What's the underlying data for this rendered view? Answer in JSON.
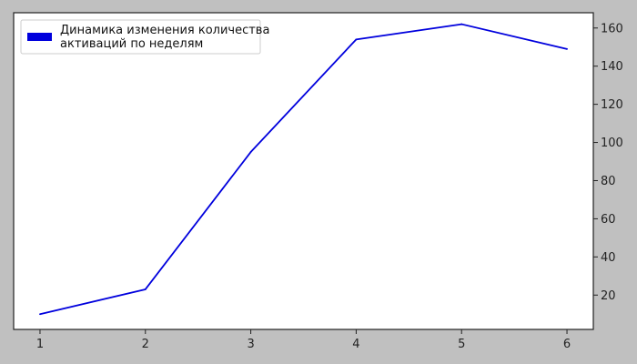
{
  "chart_data": {
    "type": "line",
    "title": "",
    "xlabel": "",
    "ylabel": "",
    "x": [
      1,
      2,
      3,
      4,
      5,
      6
    ],
    "series": [
      {
        "name": "Динамика изменения количества активаций по неделям",
        "name_lines": [
          "Динамика изменения количества",
          "активаций по неделям"
        ],
        "values": [
          10,
          23,
          95,
          154,
          162,
          149
        ],
        "color": "#0000dd"
      }
    ],
    "xticks": [
      "1",
      "2",
      "3",
      "4",
      "5",
      "6"
    ],
    "yticks": [
      20,
      40,
      60,
      80,
      100,
      120,
      140,
      160
    ],
    "ytick_labels": [
      "20",
      "40",
      "60",
      "80",
      "100",
      "120",
      "140",
      "160"
    ],
    "xlim": [
      0.75,
      6.25
    ],
    "ylim": [
      2,
      168
    ],
    "y_axis_side": "right",
    "grid": false,
    "legend_placement": "top-left",
    "colors": {
      "figure_background": "#c0c0c0",
      "plot_background": "#ffffff",
      "axes_edge": "#222222"
    }
  }
}
